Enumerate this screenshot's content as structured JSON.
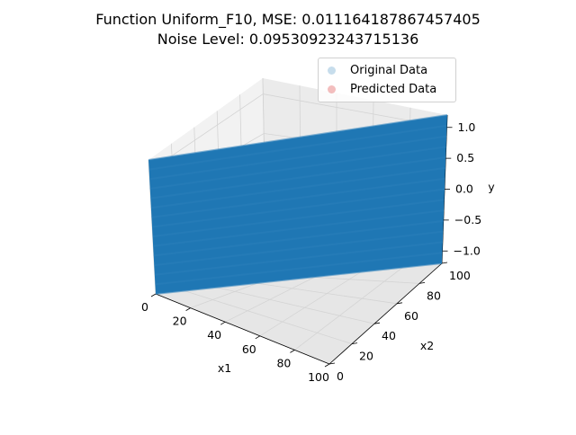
{
  "chart_data": {
    "type": "scatter",
    "projection": "3d",
    "title": "Function Uniform_F10, MSE: 0.011164187867457405",
    "subtitle": "Noise Level: 0.09530923243715136",
    "xlabel": "x1",
    "ylabel": "x2",
    "zlabel": "y",
    "xlim": [
      0,
      100
    ],
    "ylim": [
      0,
      100
    ],
    "zlim": [
      -1.2,
      1.2
    ],
    "x_ticks": [
      "0",
      "20",
      "40",
      "60",
      "80",
      "100"
    ],
    "y_ticks": [
      "0",
      "20",
      "40",
      "60",
      "80",
      "100"
    ],
    "z_ticks": [
      "−1.0",
      "−0.5",
      "0.0",
      "0.5",
      "1.0"
    ],
    "grid": true,
    "legend_position": "top-right",
    "series": [
      {
        "name": "Original Data",
        "color": "#1f77b4",
        "opacity": 0.2
      },
      {
        "name": "Predicted Data",
        "color": "#d62728",
        "opacity": 0.2
      }
    ],
    "surface": {
      "x1_range": [
        0,
        100
      ],
      "x2_range": [
        0,
        100
      ],
      "y_range": [
        -1.2,
        1.2
      ]
    }
  }
}
